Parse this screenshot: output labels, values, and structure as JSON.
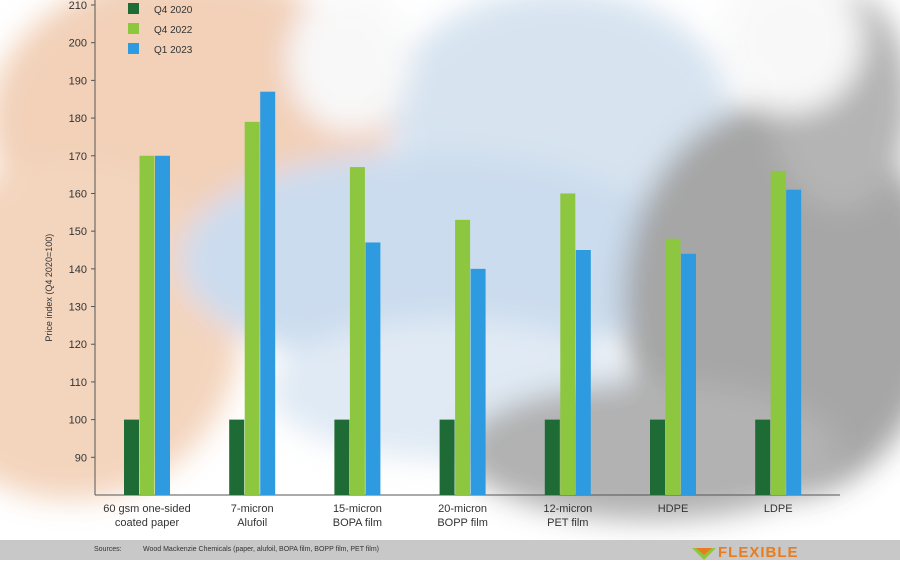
{
  "chart_data": {
    "type": "bar",
    "title": "",
    "xlabel": "",
    "ylabel": "Price index (Q4 2020=100)",
    "ylim": [
      80,
      210
    ],
    "yticks": [
      90,
      100,
      110,
      120,
      130,
      140,
      150,
      160,
      170,
      180,
      190,
      200,
      210
    ],
    "categories": [
      [
        "60 gsm one-sided",
        "coated paper"
      ],
      [
        "7-micron",
        "Alufoil"
      ],
      [
        "15-micron",
        "BOPA film"
      ],
      [
        "20-micron",
        "BOPP film"
      ],
      [
        "12-micron",
        "PET film"
      ],
      [
        "HDPE"
      ],
      [
        "LDPE"
      ]
    ],
    "series": [
      {
        "name": "Q4 2020",
        "color": "#1e6b35",
        "values": [
          100,
          100,
          100,
          100,
          100,
          100,
          100
        ]
      },
      {
        "name": "Q4 2022",
        "color": "#8dc63f",
        "values": [
          170,
          179,
          167,
          153,
          160,
          148,
          166
        ]
      },
      {
        "name": "Q1 2023",
        "color": "#2e9be0",
        "values": [
          170,
          187,
          147,
          140,
          145,
          144,
          161
        ]
      }
    ],
    "legend_position": "top-left",
    "grid": false
  },
  "footer": {
    "sources_label": "Sources:",
    "sources_text": "Wood Mackenzie Chemicals (paper, alufoil, BOPA film, BOPP film, PET film)",
    "logo_text": "FLEXIBLE",
    "logo_color": "#e87c1e"
  }
}
